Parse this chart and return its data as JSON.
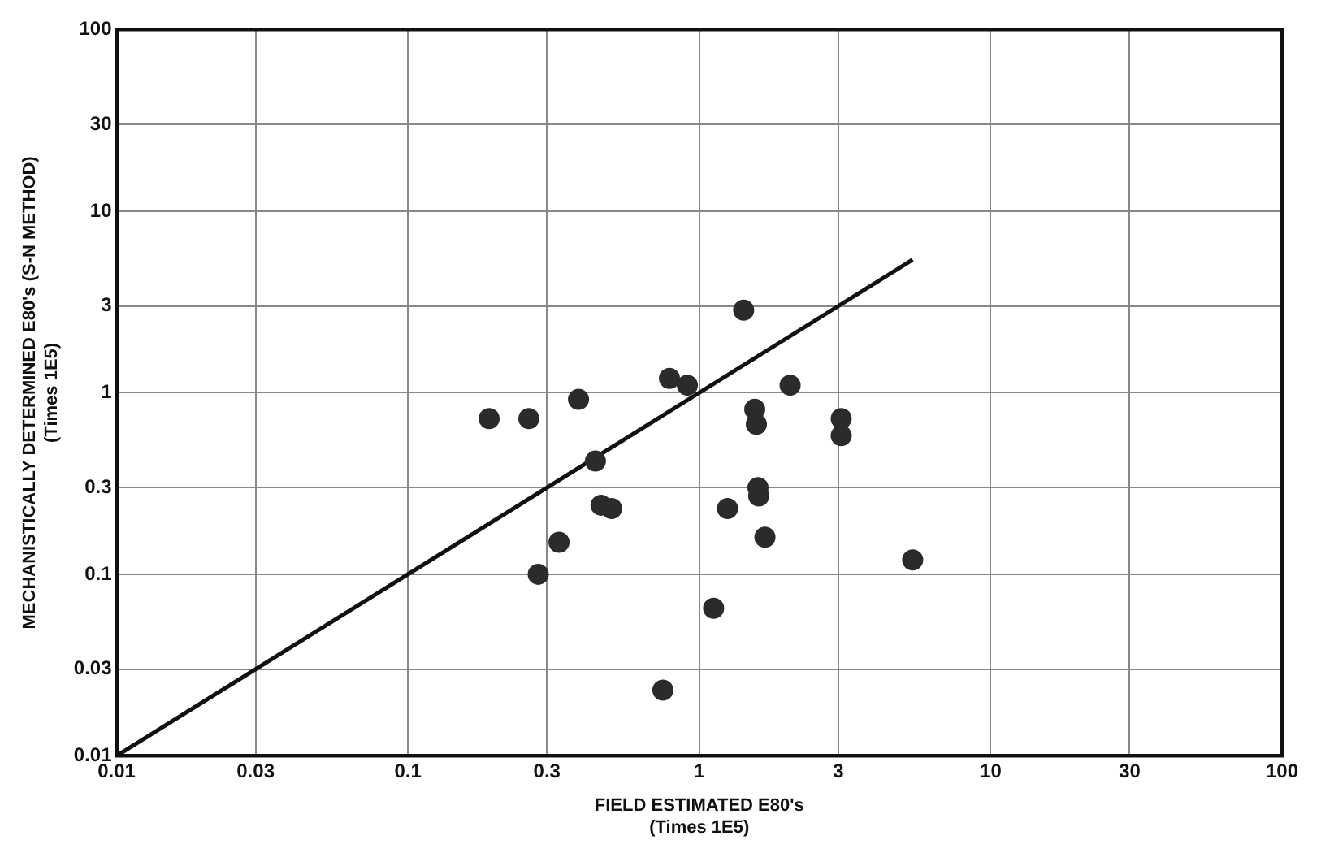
{
  "chart_data": {
    "type": "scatter",
    "xlabel": "FIELD ESTIMATED E80's\n(Times 1E5)",
    "ylabel": "MECHANISTICALLY DETERMINED E80's (S-N METHOD)\n(Times 1E5)",
    "log": "xy",
    "grid": true,
    "legend": false,
    "xlim": [
      0.01,
      100
    ],
    "xticks": [
      0.01,
      0.03,
      0.1,
      0.3,
      1,
      3,
      10,
      30,
      100
    ],
    "ylim": [
      0.01,
      100
    ],
    "yticks": [
      0.01,
      0.03,
      0.1,
      0.3,
      1,
      3,
      10,
      30,
      100
    ],
    "series": [
      {
        "color": "#2b2b2b",
        "marker": "circle",
        "x": [
          0.19,
          0.26,
          0.385,
          0.44,
          0.46,
          0.5,
          0.33,
          0.28,
          0.79,
          0.91,
          1.42,
          2.05,
          1.55,
          1.57,
          3.07,
          3.07,
          1.59,
          1.6,
          1.25,
          1.68,
          5.4,
          1.12,
          0.75
        ],
        "values": [
          0.72,
          0.72,
          0.92,
          0.42,
          0.24,
          0.23,
          0.15,
          0.1,
          1.2,
          1.1,
          2.85,
          1.1,
          0.81,
          0.67,
          0.72,
          0.58,
          0.3,
          0.27,
          0.23,
          0.16,
          0.12,
          0.065,
          0.023
        ]
      },
      {
        "type": "line",
        "color": "#111111",
        "line_style": "solid",
        "x": [
          0.01,
          5.4
        ],
        "values": [
          0.01,
          5.4
        ]
      }
    ]
  }
}
